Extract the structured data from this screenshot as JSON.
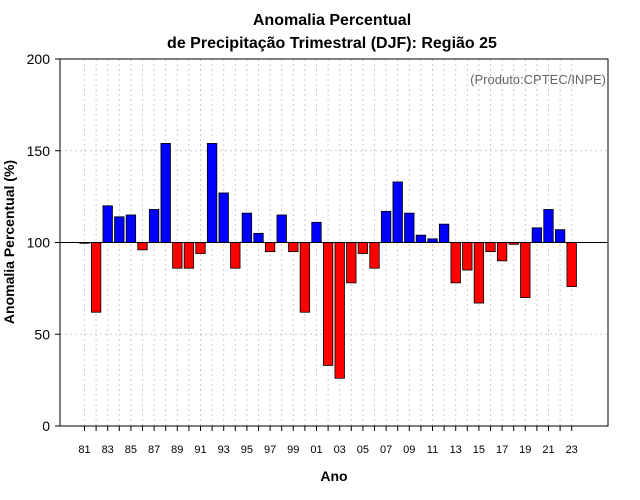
{
  "chart_data": {
    "type": "bar",
    "title_line1": "Anomalia Percentual",
    "title_line2": "de Precipitação Trimestral (DJF): Região 25",
    "xlabel": "Ano",
    "ylabel": "Anomalia Percentual (%)",
    "credit": "(Produto:CPTEC/INPE)",
    "baseline": 100,
    "ylim": [
      0,
      200
    ],
    "yticks": [
      0,
      50,
      100,
      150,
      200
    ],
    "xtick_labels": [
      "81",
      "83",
      "85",
      "87",
      "89",
      "91",
      "93",
      "95",
      "97",
      "99",
      "01",
      "03",
      "05",
      "07",
      "09",
      "11",
      "13",
      "15",
      "17",
      "19",
      "21",
      "23"
    ],
    "categories": [
      "81",
      "82",
      "83",
      "84",
      "85",
      "86",
      "87",
      "88",
      "89",
      "90",
      "91",
      "92",
      "93",
      "94",
      "95",
      "96",
      "97",
      "98",
      "99",
      "00",
      "01",
      "02",
      "03",
      "04",
      "05",
      "06",
      "07",
      "08",
      "09",
      "10",
      "11",
      "12",
      "13",
      "14",
      "15",
      "16",
      "17",
      "18",
      "19",
      "20",
      "21",
      "22",
      "23"
    ],
    "values": [
      100,
      62,
      120,
      114,
      115,
      96,
      118,
      154,
      86,
      86,
      94,
      154,
      127,
      86,
      116,
      105,
      95,
      115,
      95,
      62,
      111,
      33,
      26,
      78,
      94,
      86,
      117,
      133,
      116,
      104,
      102,
      110,
      78,
      85,
      67,
      95,
      90,
      99,
      70,
      108,
      118,
      107,
      76
    ],
    "colors": {
      "above": "#0000ff",
      "below": "#ff0000",
      "gridline": "#cccccc",
      "axis": "#000000"
    }
  }
}
